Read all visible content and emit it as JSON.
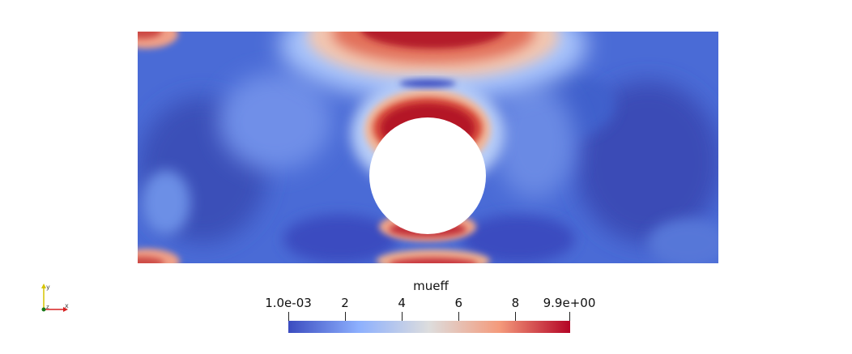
{
  "scene": {
    "field_name": "mueff"
  },
  "colorbar": {
    "title": "mueff",
    "range": [
      0.001,
      9.9
    ],
    "ticks": [
      {
        "value": 0.001,
        "label": "1.0e-03"
      },
      {
        "value": 2,
        "label": "2"
      },
      {
        "value": 4,
        "label": "4"
      },
      {
        "value": 6,
        "label": "6"
      },
      {
        "value": 8,
        "label": "8"
      },
      {
        "value": 9.9,
        "label": "9.9e+00"
      }
    ],
    "colormap": [
      "#3b4cc0",
      "#8db0fe",
      "#dddddd",
      "#f49a7b",
      "#b40426"
    ]
  },
  "axes": {
    "x_label": "x",
    "y_label": "y",
    "z_label": "z",
    "x_color": "#d62020",
    "y_color": "#d6c400",
    "z_color": "#1a7a1a"
  }
}
